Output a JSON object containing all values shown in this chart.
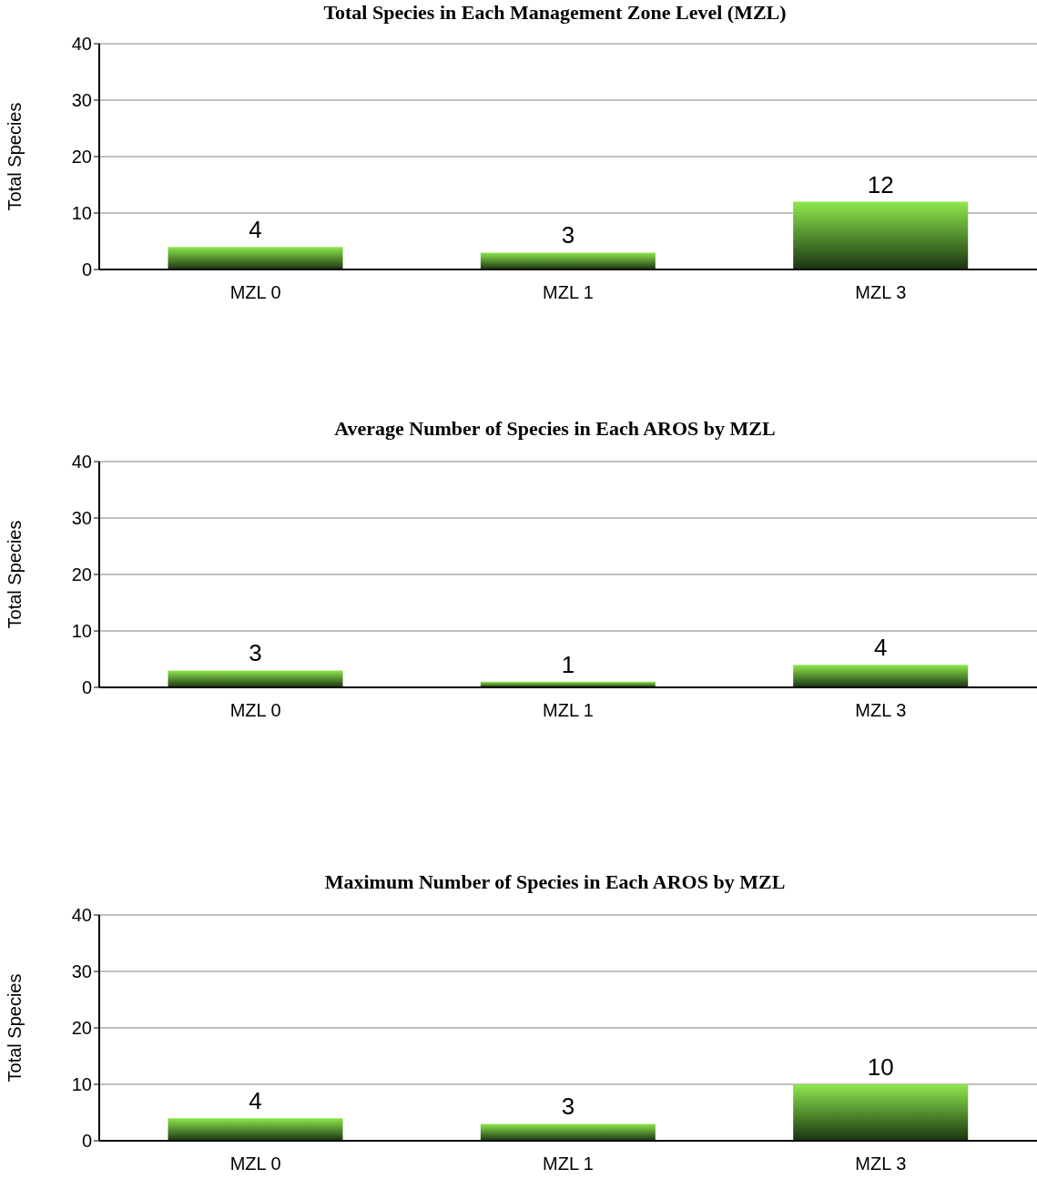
{
  "chart_data": [
    {
      "type": "bar",
      "title": "Total Species in Each Management Zone Level (MZL)",
      "ylabel": "Total Species",
      "categories": [
        "MZL 0",
        "MZL 1",
        "MZL 3"
      ],
      "values": [
        4,
        3,
        12
      ],
      "color": "#8ee84e",
      "ylim": [
        0,
        40
      ],
      "yticks": [
        0,
        10,
        20,
        30,
        40
      ],
      "grid": "y",
      "data_labels": true
    },
    {
      "type": "bar",
      "title": "Average Number of Species in Each AROS by MZL",
      "ylabel": "Total Species",
      "categories": [
        "MZL 0",
        "MZL 1",
        "MZL 3"
      ],
      "values": [
        3,
        1,
        4
      ],
      "color": "#8ee84e",
      "ylim": [
        0,
        40
      ],
      "yticks": [
        0,
        10,
        20,
        30,
        40
      ],
      "grid": "y",
      "data_labels": true
    },
    {
      "type": "bar",
      "title": "Maximum Number of Species in Each AROS by MZL",
      "ylabel": "Total Species",
      "categories": [
        "MZL 0",
        "MZL 1",
        "MZL 3"
      ],
      "values": [
        4,
        3,
        10
      ],
      "color": "#8ee84e",
      "ylim": [
        0,
        40
      ],
      "yticks": [
        0,
        10,
        20,
        30,
        40
      ],
      "grid": "y",
      "data_labels": true
    }
  ]
}
